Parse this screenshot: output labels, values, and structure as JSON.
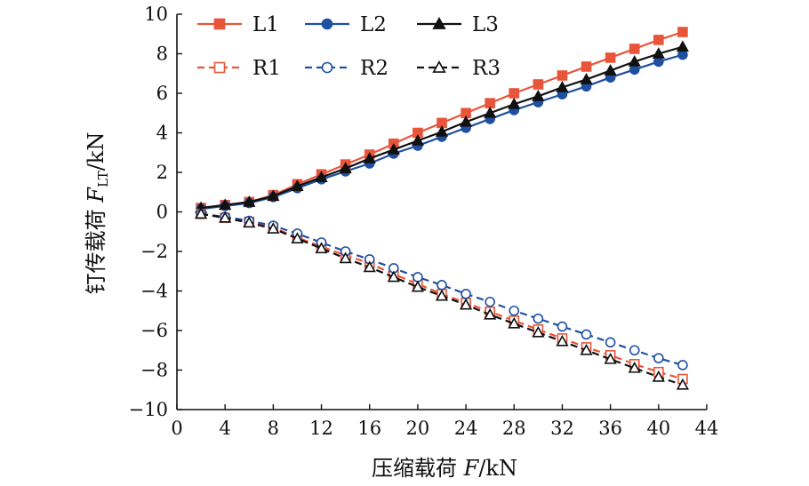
{
  "colors": {
    "L1": "#e8553a",
    "L2": "#1f4fa0",
    "L3": "#111111",
    "axis": "#111111"
  },
  "chart_data": {
    "type": "line",
    "title": "",
    "xlabel": "压缩载荷 F/kN",
    "ylabel": "钉传载荷 F_LT/kN",
    "xlabel_parts": {
      "prefix": "压缩载荷 ",
      "var": "F",
      "unit": "/kN"
    },
    "ylabel_parts": {
      "prefix": "钉传载荷 ",
      "var": "F",
      "sub": "LT",
      "unit": "/kN"
    },
    "xlim": [
      0,
      44
    ],
    "ylim": [
      -10,
      10
    ],
    "xticks": [
      0,
      4,
      8,
      12,
      16,
      20,
      24,
      28,
      32,
      36,
      40,
      44
    ],
    "yticks": [
      -10,
      -8,
      -6,
      -4,
      -2,
      0,
      2,
      4,
      6,
      8,
      10
    ],
    "xtick_labels": [
      "0",
      "4",
      "8",
      "12",
      "16",
      "20",
      "24",
      "28",
      "32",
      "36",
      "40",
      "44"
    ],
    "ytick_labels": [
      "−10",
      "−8",
      "−6",
      "−4",
      "−2",
      "0",
      "2",
      "4",
      "6",
      "8",
      "10"
    ],
    "grid": false,
    "legend_position": "top",
    "x": [
      2,
      4,
      6,
      8,
      10,
      12,
      14,
      16,
      18,
      20,
      22,
      24,
      26,
      28,
      30,
      32,
      34,
      36,
      38,
      40,
      42
    ],
    "series": [
      {
        "name": "L1",
        "color": "#e8553a",
        "marker": "square",
        "fill": "filled",
        "dash": "solid",
        "values": [
          0.2,
          0.35,
          0.5,
          0.85,
          1.4,
          1.9,
          2.4,
          2.9,
          3.45,
          4.0,
          4.5,
          5.0,
          5.5,
          6.0,
          6.45,
          6.9,
          7.35,
          7.8,
          8.25,
          8.7,
          9.1
        ]
      },
      {
        "name": "L2",
        "color": "#1f4fa0",
        "marker": "circle",
        "fill": "filled",
        "dash": "solid",
        "values": [
          0.15,
          0.3,
          0.45,
          0.75,
          1.2,
          1.65,
          2.05,
          2.45,
          2.95,
          3.35,
          3.8,
          4.25,
          4.7,
          5.15,
          5.55,
          5.95,
          6.35,
          6.8,
          7.2,
          7.6,
          7.95
        ]
      },
      {
        "name": "L3",
        "color": "#111111",
        "marker": "triangle",
        "fill": "filled",
        "dash": "solid",
        "values": [
          0.2,
          0.35,
          0.5,
          0.8,
          1.3,
          1.75,
          2.2,
          2.7,
          3.15,
          3.6,
          4.05,
          4.55,
          5.0,
          5.45,
          5.85,
          6.3,
          6.7,
          7.15,
          7.6,
          8.0,
          8.35
        ]
      },
      {
        "name": "R1",
        "color": "#e8553a",
        "marker": "square",
        "fill": "open",
        "dash": "dashed",
        "values": [
          -0.1,
          -0.3,
          -0.5,
          -0.8,
          -1.3,
          -1.75,
          -2.2,
          -2.6,
          -3.15,
          -3.65,
          -4.15,
          -4.6,
          -5.05,
          -5.5,
          -5.95,
          -6.4,
          -6.85,
          -7.25,
          -7.7,
          -8.1,
          -8.45
        ]
      },
      {
        "name": "R2",
        "color": "#1f4fa0",
        "marker": "circle",
        "fill": "open",
        "dash": "dashed",
        "values": [
          -0.1,
          -0.25,
          -0.45,
          -0.7,
          -1.1,
          -1.55,
          -2.0,
          -2.4,
          -2.85,
          -3.3,
          -3.7,
          -4.15,
          -4.55,
          -5.0,
          -5.4,
          -5.8,
          -6.2,
          -6.6,
          -7.0,
          -7.4,
          -7.75
        ]
      },
      {
        "name": "R3",
        "color": "#111111",
        "marker": "triangle",
        "fill": "open",
        "dash": "dashed",
        "values": [
          -0.1,
          -0.3,
          -0.55,
          -0.85,
          -1.35,
          -1.85,
          -2.35,
          -2.8,
          -3.3,
          -3.8,
          -4.25,
          -4.7,
          -5.2,
          -5.65,
          -6.1,
          -6.55,
          -7.0,
          -7.45,
          -7.9,
          -8.35,
          -8.75
        ]
      }
    ],
    "legend": [
      {
        "name": "L1"
      },
      {
        "name": "L2"
      },
      {
        "name": "L3"
      },
      {
        "name": "R1"
      },
      {
        "name": "R2"
      },
      {
        "name": "R3"
      }
    ]
  }
}
